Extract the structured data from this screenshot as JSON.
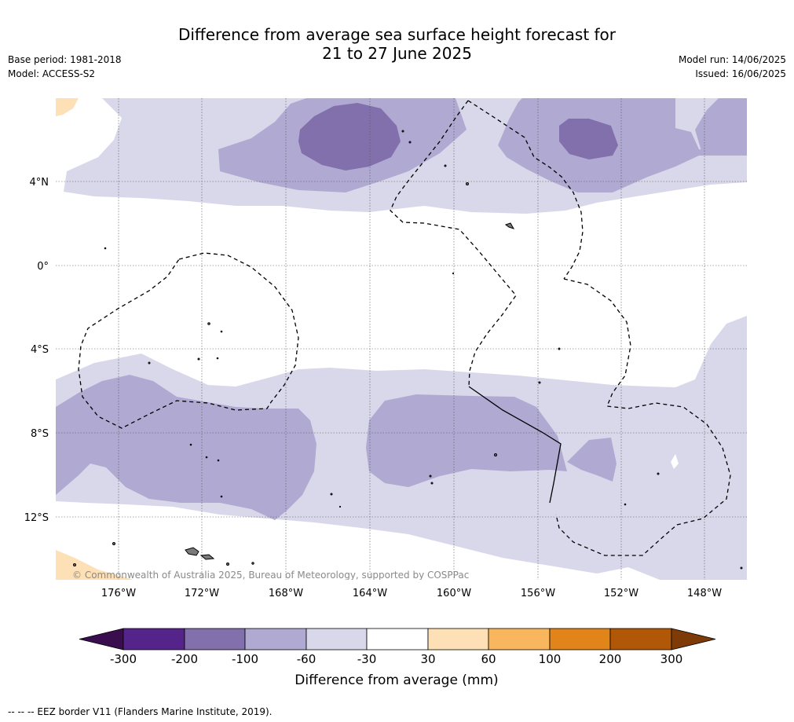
{
  "title_line1": "Difference from average sea surface height forecast for",
  "title_line2": "21 to 27 June 2025",
  "base_period": "Base period: 1981-2018",
  "model": "Model: ACCESS-S2",
  "model_run": "Model run: 14/06/2025",
  "issued": "Issued: 16/06/2025",
  "copyright": "© Commonwealth of Australia 2025, Bureau of Meteorology, supported by COSPPac",
  "latitude_labels": [
    "4°N",
    "0°",
    "4°S",
    "8°S",
    "12°S"
  ],
  "longitude_labels": [
    "176°W",
    "172°W",
    "168°W",
    "164°W",
    "160°W",
    "156°W",
    "152°W",
    "148°W"
  ],
  "colorbar": {
    "title": "Difference from average (mm)",
    "ticks": [
      "-300",
      "-200",
      "-100",
      "-60",
      "-30",
      "30",
      "60",
      "100",
      "200",
      "300"
    ],
    "colors": {
      "below_-300": "#3a0d4f",
      "-300_-200": "#55248a",
      "-200_-100": "#8170ac",
      "-100_-60": "#b0a9d2",
      "-60_-30": "#d8d8ea",
      "-30_30": "#ffffff",
      "30_60": "#fde0b6",
      "60_100": "#f8b75f",
      "100_200": "#e18419",
      "200_300": "#b05808",
      "above_300": "#7e3b07"
    }
  },
  "legend_note": "--  --  -- EEZ border V11 (Flanders Marine Institute, 2019)."
}
